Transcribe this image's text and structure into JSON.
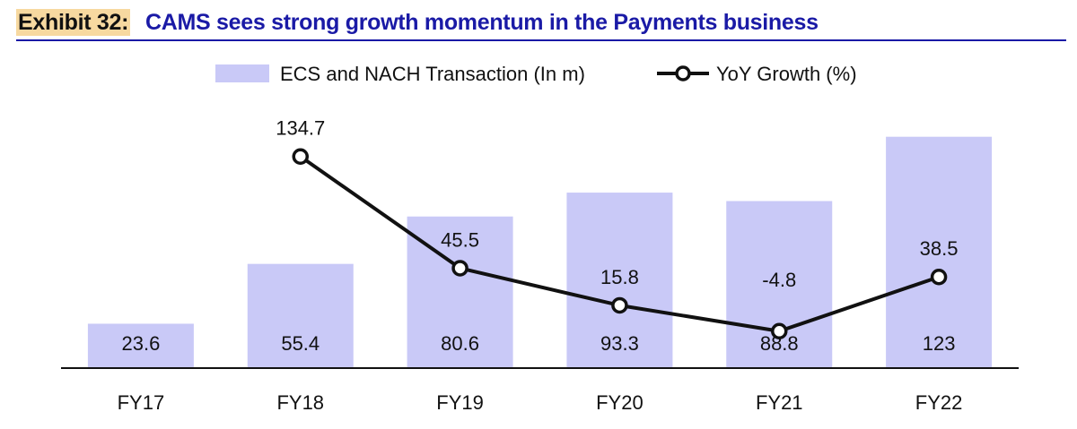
{
  "header": {
    "label": "Exhibit 32:",
    "title": "CAMS sees strong growth momentum in the Payments business"
  },
  "colors": {
    "bar": "#c9c9f7",
    "line": "#111111",
    "axis": "#111111",
    "header_accent": "#1a1aa6",
    "label_highlight": "#f7d9a0"
  },
  "chart_data": {
    "type": "bar",
    "categories": [
      "FY17",
      "FY18",
      "FY19",
      "FY20",
      "FY21",
      "FY22"
    ],
    "series": [
      {
        "name": "ECS and NACH Transaction (In m)",
        "type": "bar",
        "values": [
          23.6,
          55.4,
          80.6,
          93.3,
          88.8,
          123
        ],
        "labels": [
          "23.6",
          "55.4",
          "80.6",
          "93.3",
          "88.8",
          "123"
        ],
        "axis": "left"
      },
      {
        "name": "YoY Growth (%)",
        "type": "line",
        "values": [
          null,
          134.7,
          45.5,
          15.8,
          -4.8,
          38.5
        ],
        "labels": [
          "",
          "134.7",
          "45.5",
          "15.8",
          "-4.8",
          "38.5"
        ],
        "axis": "right"
      }
    ],
    "ylim_left": [
      0,
      130
    ],
    "ylim_right": [
      -30,
      170
    ],
    "legend_position": "top-center",
    "grid": false
  }
}
